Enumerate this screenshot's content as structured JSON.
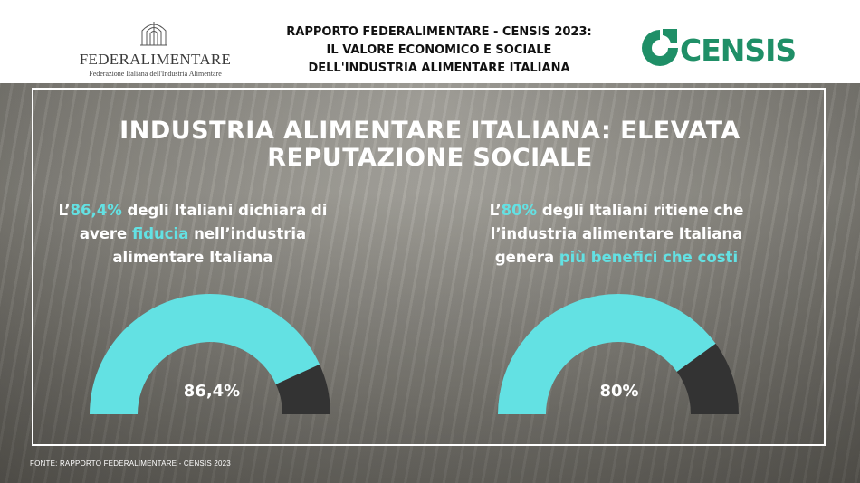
{
  "header": {
    "fed_logo_name": "FEDERALIMENTARE",
    "fed_logo_sub": "Federazione Italiana dell'Industria Alimentare",
    "report_title_lines": [
      "RAPPORTO FEDERALIMENTARE - CENSIS 2023:",
      "IL VALORE ECONOMICO E SOCIALE",
      "DELL'INDUSTRIA ALIMENTARE ITALIANA"
    ],
    "censis_logo_text": "CENSIS"
  },
  "main": {
    "title_lines": [
      "INDUSTRIA ALIMENTARE ITALIANA: ELEVATA",
      "REPUTAZIONE SOCIALE"
    ],
    "stat_left": {
      "p1": "L’",
      "hl1": "86,4%",
      "p2": " degli Italiani dichiara di avere ",
      "hl2": "fiducia",
      "p3": " nell’industria alimentare Italiana"
    },
    "stat_right": {
      "p1": "L’",
      "hl1": "80%",
      "p2": " degli Italiani ritiene che l’industria alimentare Italiana genera ",
      "hl2": "più benefici che costi",
      "p3": ""
    }
  },
  "footer": {
    "source": "FONTE: RAPPORTO FEDERALIMENTARE - CENSIS  2023"
  },
  "colors": {
    "accent": "#63e1e3",
    "remainder": "#333333",
    "censis_green": "#1f8f67",
    "frame": "#ffffff"
  },
  "chart_data": [
    {
      "type": "pie",
      "subtype": "half-donut gauge",
      "value_label": "86,4%",
      "values": [
        86.4,
        13.6
      ],
      "max": 100
    },
    {
      "type": "pie",
      "subtype": "half-donut gauge",
      "value_label": "80%",
      "values": [
        80,
        20
      ],
      "max": 100
    }
  ]
}
